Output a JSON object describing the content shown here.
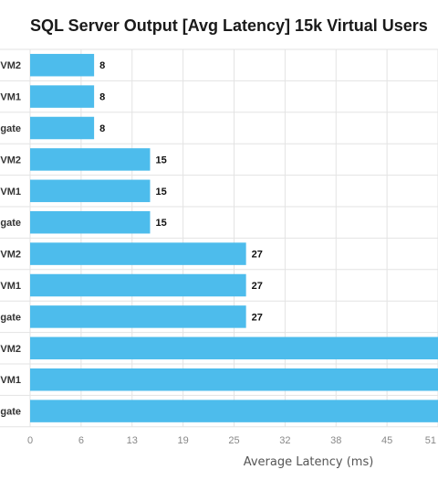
{
  "chart_data": {
    "type": "bar",
    "orientation": "horizontal",
    "title": "SQL Server Output [Avg Latency] 15k Virtual Users",
    "xlabel": "Average Latency (ms)",
    "ylabel": "",
    "categories": [
      "VM2",
      "VM1",
      "gate",
      "VM2",
      "VM1",
      "gate",
      "VM2",
      "VM1",
      "gate",
      "VM2",
      "VM1",
      "gate"
    ],
    "values": [
      8,
      8,
      8,
      15,
      15,
      15,
      27,
      27,
      27,
      51,
      51,
      51
    ],
    "value_labels": [
      "8",
      "8",
      "8",
      "15",
      "15",
      "15",
      "27",
      "27",
      "27",
      "",
      "",
      ""
    ],
    "xlim": [
      0,
      51
    ],
    "x_ticks": [
      "0",
      "6",
      "13",
      "19",
      "25",
      "32",
      "38",
      "45",
      "51"
    ],
    "grid": true,
    "bar_color": "#4dbcec",
    "grid_color": "#e3e3e3"
  }
}
